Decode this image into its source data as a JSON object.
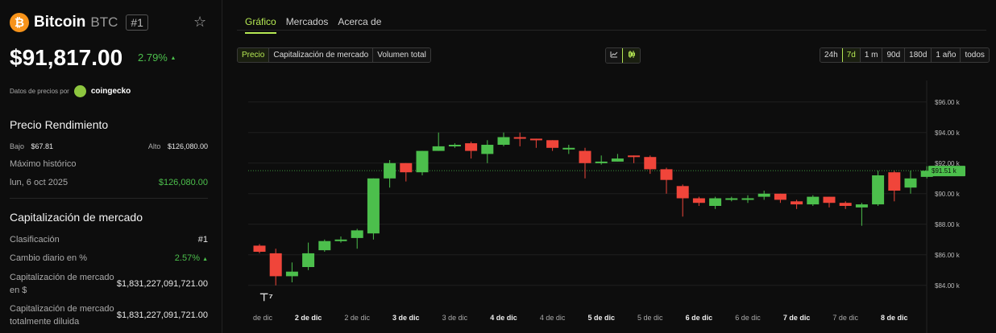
{
  "coin": {
    "name": "Bitcoin",
    "symbol": "BTC",
    "rank": "#1",
    "logo_glyph": "₿"
  },
  "price": "$91,817.00",
  "price_change": "2.79%",
  "data_by_label": "Datos de precios por",
  "data_by_source": "coingecko",
  "performance": {
    "title": "Precio Rendimiento",
    "low_label": "Bajo",
    "low_value": "$67.81",
    "high_label": "Alto",
    "high_value": "$126,080.00",
    "ath_label": "Máximo histórico",
    "ath_date": "lun, 6 oct 2025",
    "ath_value": "$126,080.00"
  },
  "market_cap": {
    "title": "Capitalización de mercado",
    "rows": [
      {
        "label": "Clasificación",
        "value": "#1"
      },
      {
        "label": "Cambio diario en %",
        "value": "2.57%"
      },
      {
        "label": "Capitalización de mercado en $",
        "value": "$1,831,227,091,721.00"
      },
      {
        "label": "Capitalización de mercado totalmente diluida",
        "value": "$1,831,227,091,721.00"
      }
    ]
  },
  "tabs": [
    "Gráfico",
    "Mercados",
    "Acerca de"
  ],
  "metric_buttons": [
    "Precio",
    "Capitalización de mercado",
    "Volumen total"
  ],
  "range_buttons": [
    "24h",
    "7d",
    "1 m",
    "90d",
    "180d",
    "1 año",
    "todos"
  ],
  "colors": {
    "accent": "#b5e853",
    "up": "#4cbf4c",
    "down": "#f0453a"
  },
  "chart_data": {
    "type": "candlestick",
    "current_price_label": "$91.51 k",
    "current_price": 91510,
    "y_ticks": [
      "$96.00 k",
      "$94.00 k",
      "$92.00 k",
      "$90.00 k",
      "$88.00 k",
      "$86.00 k",
      "$84.00 k"
    ],
    "y_tick_values": [
      96000,
      94000,
      92000,
      90000,
      88000,
      86000,
      84000
    ],
    "ylim": [
      83200,
      97200
    ],
    "x_labels": [
      {
        "label": "de dic",
        "bold": false,
        "i": 0
      },
      {
        "label": "2 de dic",
        "bold": true,
        "i": 3
      },
      {
        "label": "2 de dic",
        "bold": false,
        "i": 6
      },
      {
        "label": "3 de dic",
        "bold": true,
        "i": 9
      },
      {
        "label": "3 de dic",
        "bold": false,
        "i": 12
      },
      {
        "label": "4 de dic",
        "bold": true,
        "i": 15
      },
      {
        "label": "4 de dic",
        "bold": false,
        "i": 18
      },
      {
        "label": "5 de dic",
        "bold": true,
        "i": 21
      },
      {
        "label": "5 de dic",
        "bold": false,
        "i": 24
      },
      {
        "label": "6 de dic",
        "bold": true,
        "i": 27
      },
      {
        "label": "6 de dic",
        "bold": false,
        "i": 30
      },
      {
        "label": "7 de dic",
        "bold": true,
        "i": 33
      },
      {
        "label": "7 de dic",
        "bold": false,
        "i": 36
      },
      {
        "label": "8 de dic",
        "bold": true,
        "i": 39
      }
    ],
    "candles": [
      [
        86600,
        86200,
        86700,
        86100
      ],
      [
        86100,
        84600,
        86400,
        84000
      ],
      [
        84600,
        84900,
        85500,
        84200
      ],
      [
        85200,
        86100,
        86800,
        85000
      ],
      [
        86300,
        86900,
        87000,
        86200
      ],
      [
        86900,
        87000,
        87200,
        86800
      ],
      [
        87100,
        87600,
        87700,
        86400
      ],
      [
        87400,
        91000,
        91000,
        87000
      ],
      [
        91000,
        92000,
        92200,
        90400
      ],
      [
        92000,
        91400,
        92000,
        90800
      ],
      [
        91400,
        92800,
        92800,
        91200
      ],
      [
        92800,
        93100,
        94000,
        92800
      ],
      [
        93100,
        93200,
        93300,
        93000
      ],
      [
        93300,
        92800,
        93400,
        92300
      ],
      [
        92600,
        93200,
        93500,
        92000
      ],
      [
        93200,
        93700,
        94000,
        93100
      ],
      [
        93700,
        93600,
        94000,
        93100
      ],
      [
        93600,
        93500,
        93600,
        93000
      ],
      [
        93500,
        93000,
        93500,
        92800
      ],
      [
        93000,
        93000,
        93200,
        92600
      ],
      [
        92800,
        92000,
        93000,
        91000
      ],
      [
        92000,
        92100,
        92500,
        91900
      ],
      [
        92100,
        92300,
        92600,
        92100
      ],
      [
        92500,
        92400,
        92500,
        92000
      ],
      [
        92400,
        91600,
        92500,
        91300
      ],
      [
        91600,
        90900,
        91700,
        90000
      ],
      [
        90500,
        89700,
        90600,
        88500
      ],
      [
        89700,
        89400,
        89800,
        89200
      ],
      [
        89200,
        89700,
        89800,
        89000
      ],
      [
        89700,
        89700,
        89800,
        89500
      ],
      [
        89600,
        89700,
        89900,
        89400
      ],
      [
        89800,
        90000,
        90200,
        89600
      ],
      [
        90000,
        89600,
        90000,
        89400
      ],
      [
        89500,
        89300,
        89600,
        89000
      ],
      [
        89300,
        89800,
        89900,
        89200
      ],
      [
        89800,
        89400,
        89800,
        89100
      ],
      [
        89400,
        89200,
        89500,
        89000
      ],
      [
        89100,
        89300,
        89400,
        87900
      ],
      [
        89300,
        91200,
        91500,
        89200
      ],
      [
        91400,
        90200,
        91500,
        89500
      ],
      [
        90400,
        91000,
        91500,
        90000
      ],
      [
        91100,
        91500,
        91800,
        91000
      ],
      [
        91400,
        91600,
        91700,
        91300
      ]
    ]
  }
}
